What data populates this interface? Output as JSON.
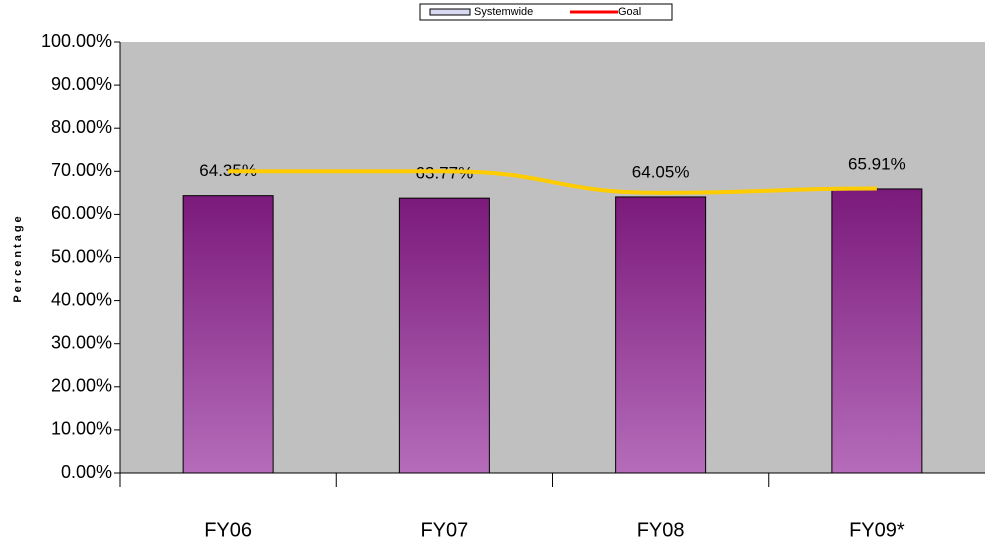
{
  "chart_data": {
    "type": "bar",
    "y_label": "Percentage",
    "categories": [
      "FY06",
      "FY07",
      "FY08",
      "FY09*"
    ],
    "series": [
      {
        "name": "Systemwide",
        "type": "bar",
        "color": "#7b1a7b",
        "values": [
          64.35,
          63.77,
          64.05,
          65.91
        ],
        "value_labels": [
          "64.35%",
          "63.77%",
          "64.05%",
          "65.91%"
        ]
      },
      {
        "name": "Goal",
        "type": "line",
        "color": "#ffcc00",
        "legend_color": "#ff0000",
        "values": [
          70,
          70,
          65,
          66
        ]
      }
    ],
    "ylim": [
      0,
      100
    ],
    "yticks": [
      {
        "value": 0,
        "label": "0.00%"
      },
      {
        "value": 10,
        "label": "10.00%"
      },
      {
        "value": 20,
        "label": "20.00%"
      },
      {
        "value": 30,
        "label": "30.00%"
      },
      {
        "value": 40,
        "label": "40.00%"
      },
      {
        "value": 50,
        "label": "50.00%"
      },
      {
        "value": 60,
        "label": "60.00%"
      },
      {
        "value": 70,
        "label": "70.00%"
      },
      {
        "value": 80,
        "label": "80.00%"
      },
      {
        "value": 90,
        "label": "90.00%"
      },
      {
        "value": 100,
        "label": "100.00%"
      }
    ],
    "plot_background": "#c0c0c0"
  }
}
